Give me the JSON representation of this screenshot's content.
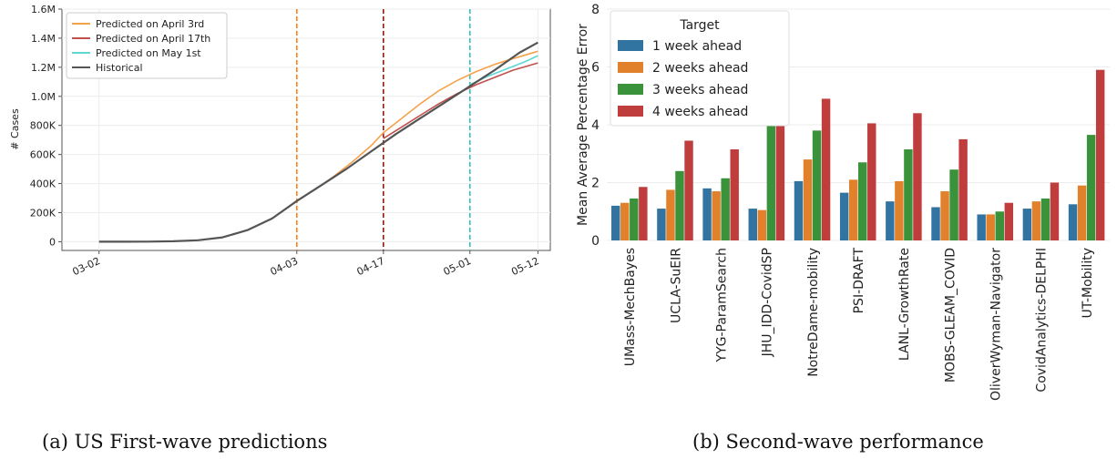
{
  "chart_data": [
    {
      "type": "line",
      "caption": "(a) US First-wave predictions",
      "ylabel": "# Cases",
      "ylim": [
        -60000,
        1600000
      ],
      "yticks": [
        0,
        200000,
        400000,
        600000,
        800000,
        1000000,
        1200000,
        1400000,
        1600000
      ],
      "yticklabels": [
        "0",
        "200K",
        "400K",
        "600K",
        "800K",
        "1.0M",
        "1.2M",
        "1.4M",
        "1.6M"
      ],
      "xlim": [
        "2020-02-25",
        "2020-05-14"
      ],
      "xticks": [
        "2020-03-02",
        "2020-04-03",
        "2020-04-17",
        "2020-05-01",
        "2020-05-12"
      ],
      "xticklabels": [
        "03-02",
        "04-03",
        "04-17",
        "05-01",
        "05-12"
      ],
      "legend_position": "top-left",
      "vlines": [
        {
          "x": "2020-04-03",
          "color": "#ff7f0e"
        },
        {
          "x": "2020-04-17",
          "color": "#8c1c13"
        },
        {
          "x": "2020-05-01",
          "color": "#2ec4c6"
        }
      ],
      "series": [
        {
          "name": "Predicted on April 3rd",
          "color": "#f5a24c",
          "x": [
            "2020-04-03",
            "2020-04-06",
            "2020-04-09",
            "2020-04-12",
            "2020-04-15",
            "2020-04-17",
            "2020-04-20",
            "2020-04-23",
            "2020-04-26",
            "2020-04-29",
            "2020-05-02",
            "2020-05-05",
            "2020-05-08",
            "2020-05-12"
          ],
          "y": [
            280000,
            360000,
            450000,
            550000,
            660000,
            750000,
            850000,
            950000,
            1040000,
            1110000,
            1170000,
            1220000,
            1260000,
            1310000
          ]
        },
        {
          "name": "Predicted on April 17th",
          "color": "#c0504d",
          "x": [
            "2020-04-17",
            "2020-04-20",
            "2020-04-23",
            "2020-04-26",
            "2020-04-29",
            "2020-05-02",
            "2020-05-05",
            "2020-05-08",
            "2020-05-12"
          ],
          "y": [
            710000,
            790000,
            870000,
            950000,
            1020000,
            1080000,
            1130000,
            1180000,
            1230000
          ]
        },
        {
          "name": "Predicted on May 1st",
          "color": "#5fd7d2",
          "x": [
            "2020-05-01",
            "2020-05-04",
            "2020-05-07",
            "2020-05-10",
            "2020-05-12"
          ],
          "y": [
            1080000,
            1140000,
            1190000,
            1240000,
            1280000
          ]
        },
        {
          "name": "Historical",
          "color": "#555555",
          "x": [
            "2020-03-02",
            "2020-03-06",
            "2020-03-10",
            "2020-03-14",
            "2020-03-18",
            "2020-03-22",
            "2020-03-26",
            "2020-03-30",
            "2020-04-03",
            "2020-04-07",
            "2020-04-11",
            "2020-04-15",
            "2020-04-19",
            "2020-04-23",
            "2020-04-27",
            "2020-05-01",
            "2020-05-05",
            "2020-05-09",
            "2020-05-12"
          ],
          "y": [
            0,
            0,
            1000,
            3000,
            10000,
            30000,
            80000,
            160000,
            280000,
            390000,
            500000,
            620000,
            740000,
            850000,
            960000,
            1070000,
            1180000,
            1300000,
            1370000
          ]
        }
      ]
    },
    {
      "type": "bar",
      "caption": "(b) Second-wave performance",
      "ylabel": "Mean Average Percentage Error",
      "ylim": [
        0,
        8
      ],
      "yticks": [
        0,
        2,
        4,
        6,
        8
      ],
      "grid": true,
      "legend_title": "Target",
      "legend_position": "top-left",
      "categories": [
        "UMass-MechBayes",
        "UCLA-SuEIR",
        "YYG-ParamSearch",
        "JHU_IDD-CovidSP",
        "NotreDame-mobility",
        "PSI-DRAFT",
        "LANL-GrowthRate",
        "MOBS-GLEAM_COVID",
        "OliverWyman-Navigator",
        "CovidAnalytics-DELPHI",
        "UT-Mobility"
      ],
      "series": [
        {
          "name": "1 week ahead",
          "color": "#3274a1",
          "values": [
            1.2,
            1.1,
            1.8,
            1.1,
            2.05,
            1.65,
            1.35,
            1.15,
            0.9,
            1.1,
            1.25
          ]
        },
        {
          "name": "2 weeks ahead",
          "color": "#e1812c",
          "values": [
            1.3,
            1.75,
            1.7,
            1.05,
            2.8,
            2.1,
            2.05,
            1.7,
            0.9,
            1.35,
            1.9
          ]
        },
        {
          "name": "3 weeks ahead",
          "color": "#3a923a",
          "values": [
            1.45,
            2.4,
            2.15,
            4.2,
            3.8,
            2.7,
            3.15,
            2.45,
            1.0,
            1.45,
            3.65
          ]
        },
        {
          "name": "4 weeks ahead",
          "color": "#c03d3e",
          "values": [
            1.85,
            3.45,
            3.15,
            7.9,
            4.9,
            4.05,
            4.4,
            3.5,
            1.3,
            2.0,
            5.9
          ]
        }
      ]
    }
  ]
}
